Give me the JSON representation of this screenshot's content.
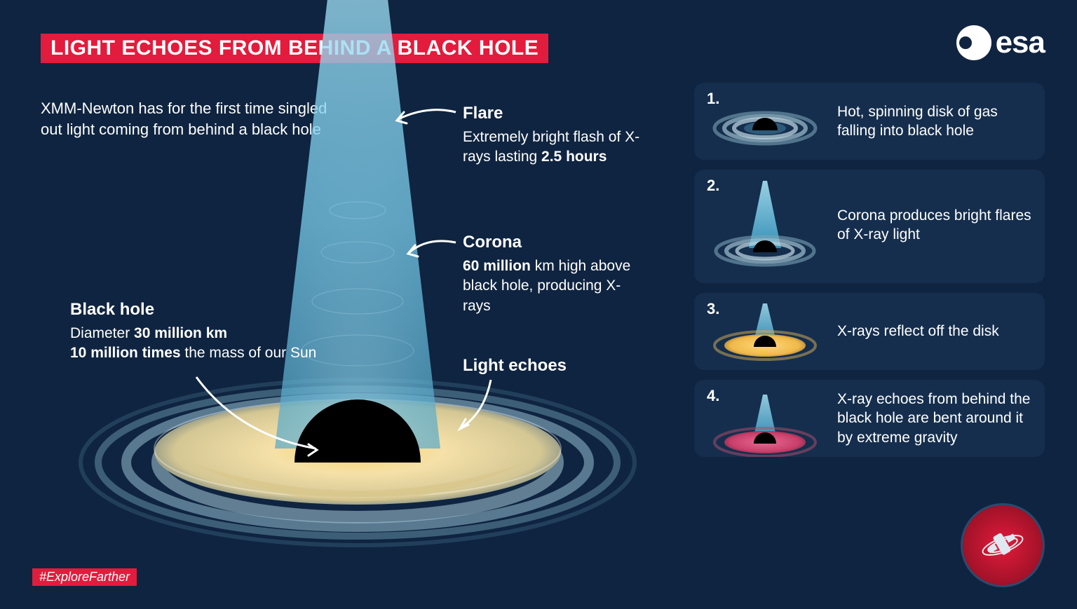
{
  "colors": {
    "bg": "#0f2440",
    "panel_bg": "#152e4d",
    "accent_red": "#e31b3c",
    "text": "#ffffff",
    "disk_warm": "#f5e0a8",
    "disk_warm_mid": "#e8c878",
    "disk_warm_core": "#f9d56e",
    "corona_blue": "#6ec5e6",
    "corona_blue_deep": "#2e8fb8",
    "ring_light": "#8fb7c9",
    "ring_dark": "#2c5a7a",
    "panel3_gold": "#f0b94a",
    "panel4_red": "#c83f6a",
    "black": "#000000"
  },
  "title": "LIGHT ECHOES FROM BEHIND A BLACK HOLE",
  "subtitle": "XMM-Newton has for the first time singled out light coming from behind a black hole",
  "esa_label": "esa",
  "hashtag": "#ExploreFarther",
  "annotations": {
    "flare": {
      "head": "Flare",
      "body": "Extremely bright flash of X-rays lasting <b>2.5 hours</b>"
    },
    "corona": {
      "head": "Corona",
      "body": "<b>60 million</b> km high above black hole, producing X-rays"
    },
    "light_echoes": {
      "head": "Light echoes"
    },
    "black_hole": {
      "head": "Black hole",
      "body": "Diameter <b>30 million km</b><br><b>10 million times</b> the mass of our Sun"
    }
  },
  "panels": [
    {
      "num": "1.",
      "text": "Hot, spinning disk of gas falling into black hole",
      "variant": "disk"
    },
    {
      "num": "2.",
      "text": "Corona produces bright flares of X-ray light",
      "variant": "flare"
    },
    {
      "num": "3.",
      "text": "X-rays reflect off the disk",
      "variant": "reflect"
    },
    {
      "num": "4.",
      "text": "X-ray echoes from behind the black hole are bent around it by extreme gravity",
      "variant": "echo"
    }
  ],
  "badge_label": "xmm-newton"
}
